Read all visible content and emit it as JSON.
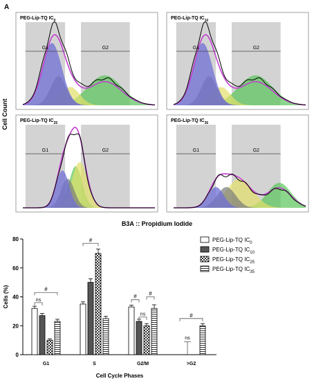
{
  "panel_letter": "A",
  "flow": {
    "y_axis_label": "Cell Count",
    "x_axis_label": "B3A :: Propidium Iodide",
    "gate_left": "G1",
    "gate_right": "G2",
    "panels": [
      {
        "id": "ic0",
        "title_main": "PEG-Lip-TQ IC",
        "title_sub": "0",
        "profile": "g1_dominant"
      },
      {
        "id": "ic10",
        "title_main": "PEG-Lip-TQ IC",
        "title_sub": "10",
        "profile": "g1_dominant"
      },
      {
        "id": "ic25",
        "title_main": "PEG-Lip-TQ IC",
        "title_sub": "25",
        "profile": "s_dominant"
      },
      {
        "id": "ic35",
        "title_main": "PEG-Lip-TQ IC",
        "title_sub": "35",
        "profile": "broad_s_g2"
      }
    ],
    "colors": {
      "g1": "#6f6fd6",
      "g1b": "#7a7a7a",
      "s": "#e3e06a",
      "g2": "#58c458",
      "fit": "#c23fd0",
      "gate": "#d3d3d3"
    }
  },
  "chart_data": {
    "type": "bar",
    "title": "",
    "xlabel": "Cell Cycle Phases",
    "ylabel": "Cells (%)",
    "ylim": [
      0,
      80
    ],
    "yticks": [
      0,
      20,
      40,
      60,
      80
    ],
    "categories": [
      "G1",
      "S",
      "G2/M",
      ">G2"
    ],
    "series": [
      {
        "name_main": "PEG-Lip-TQ IC",
        "name_sub": "0",
        "pattern": "solid",
        "values": [
          32,
          35,
          33,
          0
        ],
        "errors": [
          1.5,
          1.5,
          1.2,
          0
        ]
      },
      {
        "name_main": "PEG-Lip-TQ IC",
        "name_sub": "10",
        "pattern": "dark",
        "values": [
          27,
          50,
          23,
          0
        ],
        "errors": [
          1.5,
          2.5,
          1.5,
          0
        ]
      },
      {
        "name_main": "PEG-Lip-TQ IC",
        "name_sub": "25",
        "pattern": "checker",
        "values": [
          10,
          70,
          20,
          0
        ],
        "errors": [
          1.0,
          3.0,
          1.5,
          0
        ]
      },
      {
        "name_main": "PEG-Lip-TQ IC",
        "name_sub": "35",
        "pattern": "hstripe",
        "values": [
          23,
          25,
          32,
          20
        ],
        "errors": [
          1.5,
          1.5,
          2.5,
          1.5
        ]
      }
    ],
    "annotations": {
      "hash": "#",
      "ns": "ns"
    }
  }
}
